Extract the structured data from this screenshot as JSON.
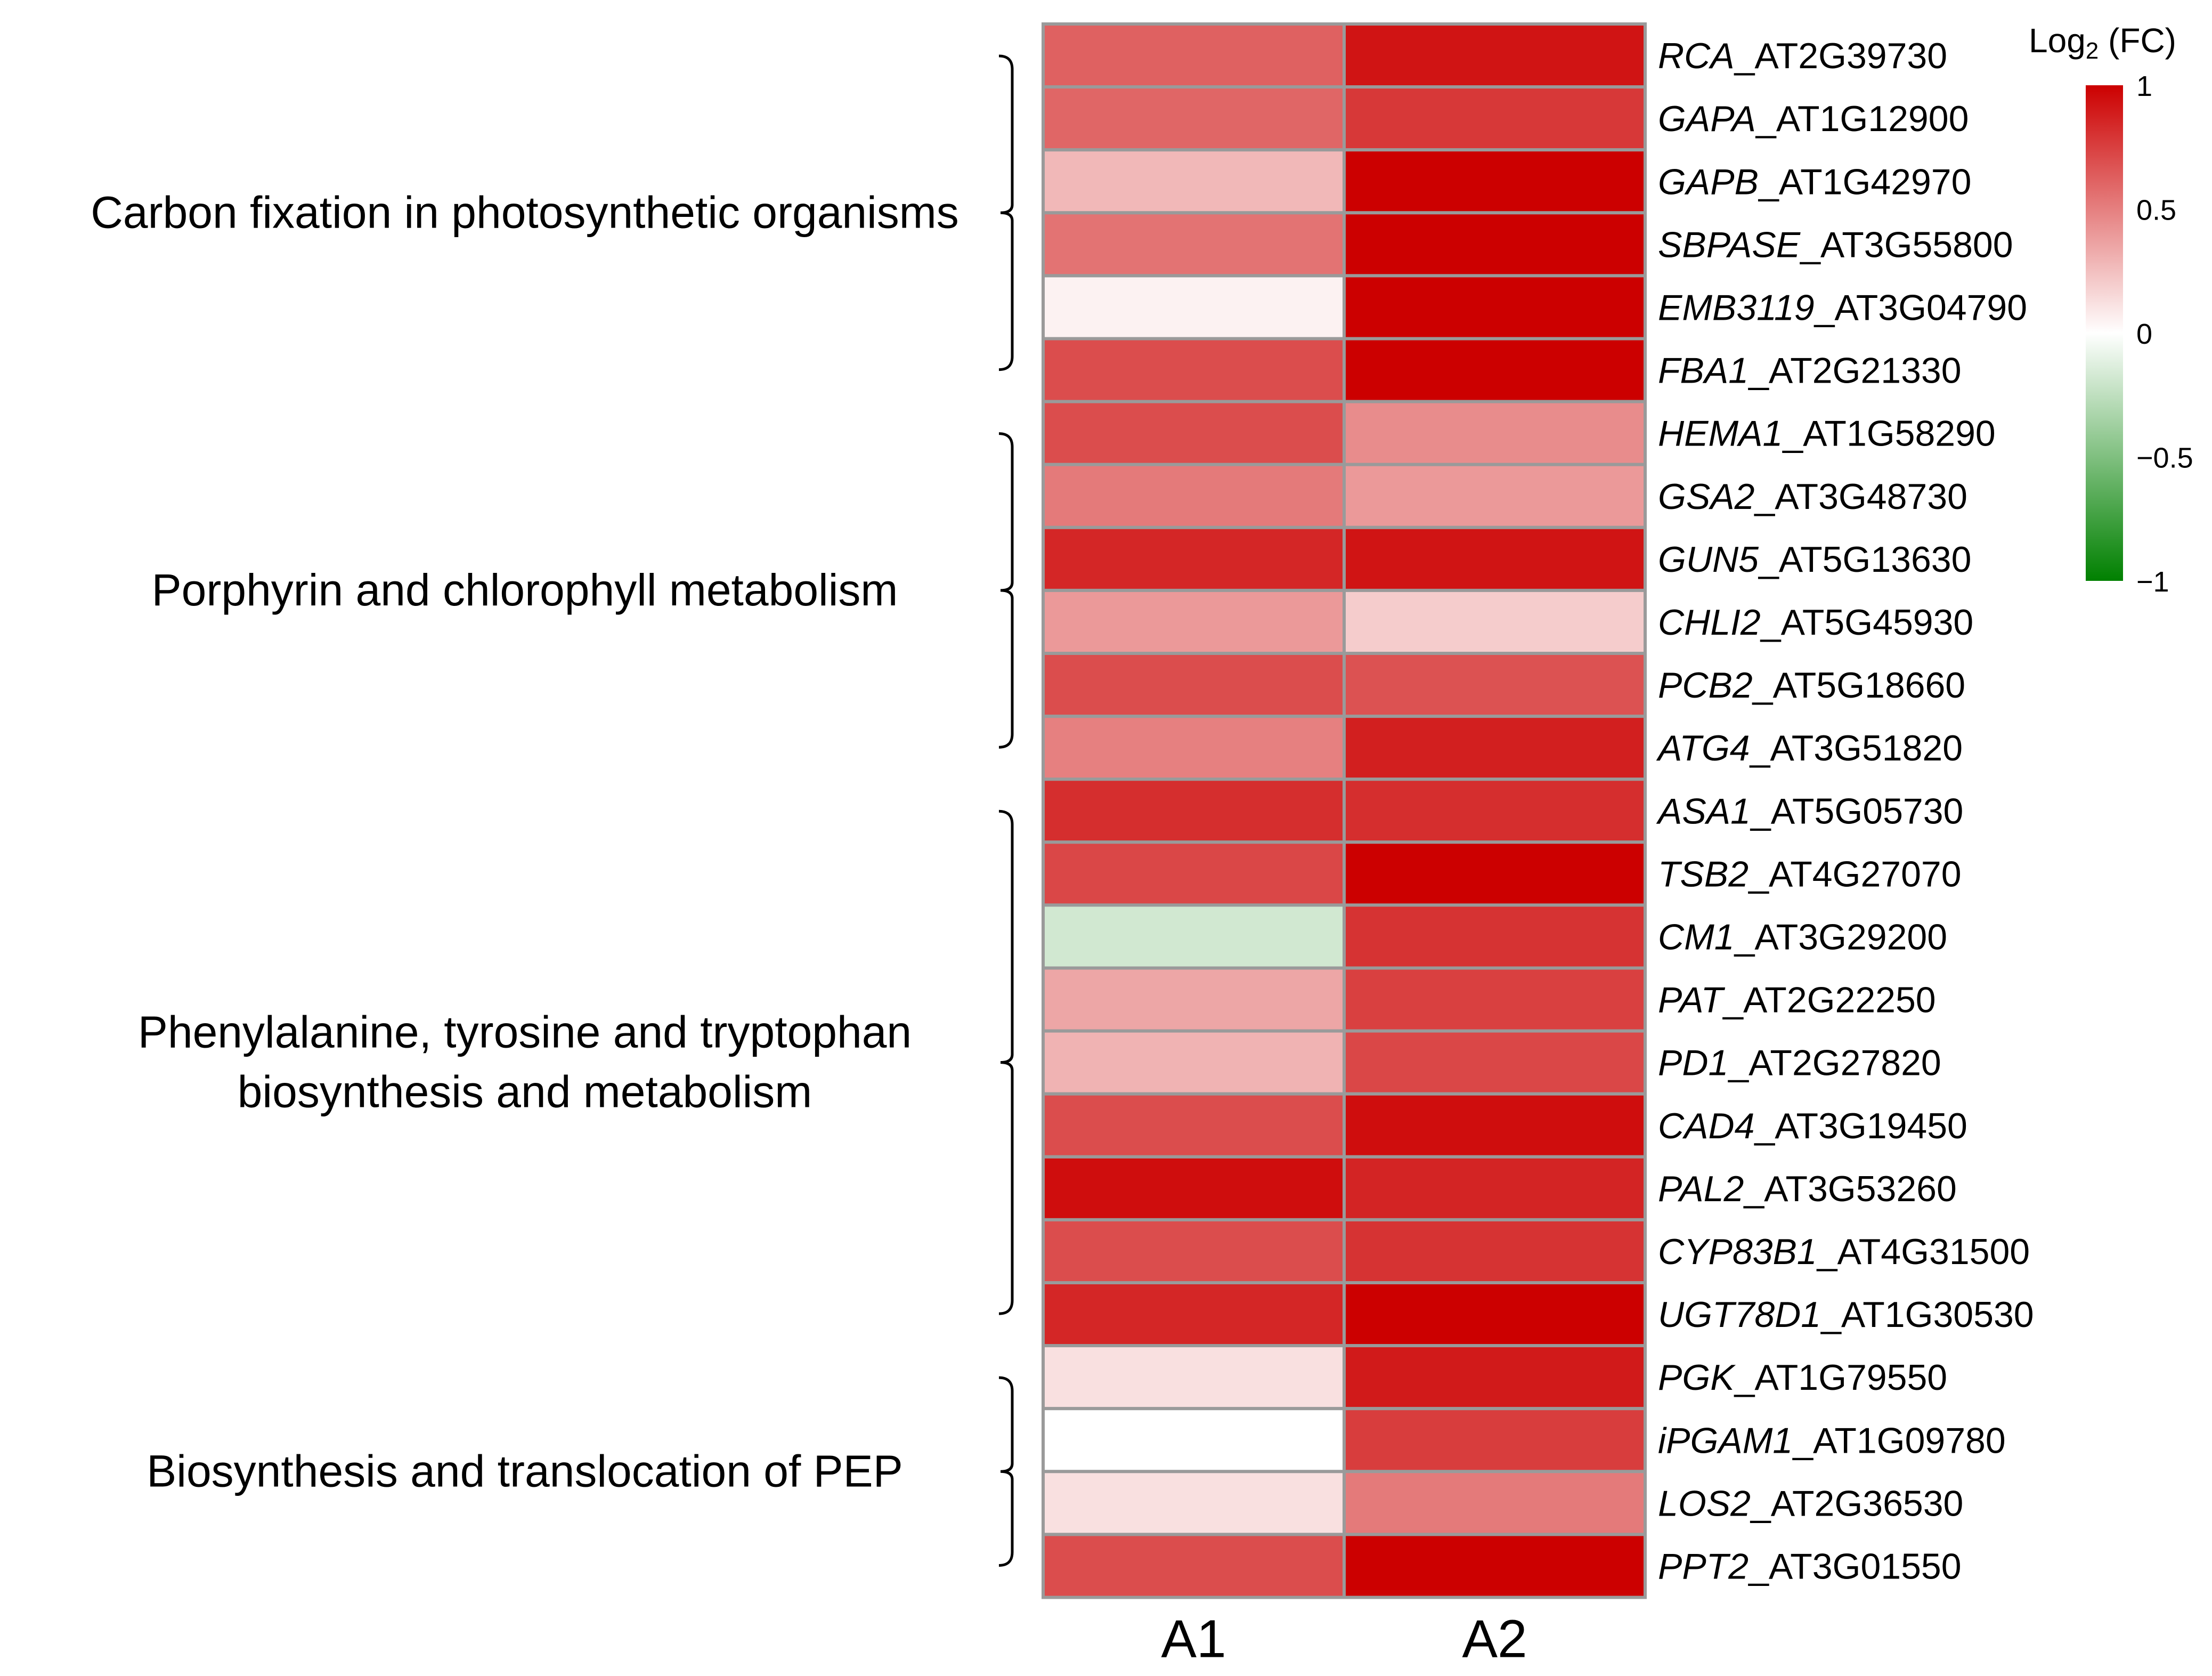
{
  "chart_data": {
    "type": "heatmap",
    "columns": [
      "A1",
      "A2"
    ],
    "legend": {
      "title_prefix": "Log",
      "title_sub": "2",
      "title_suffix": " (FC)",
      "min": -1,
      "max": 1,
      "ticks": [
        {
          "value": 1,
          "label": "1"
        },
        {
          "value": 0.5,
          "label": "0.5"
        },
        {
          "value": 0,
          "label": "0"
        },
        {
          "value": -0.5,
          "label": "−0.5"
        },
        {
          "value": -1,
          "label": "−1"
        }
      ],
      "colors": {
        "low": "#008000",
        "mid": "#ffffff",
        "high": "#cc0000"
      }
    },
    "groups": [
      {
        "label_lines": [
          "Carbon fixation in photosynthetic organisms"
        ],
        "first_row": 0,
        "last_row": 5
      },
      {
        "label_lines": [
          "Porphyrin and chlorophyll metabolism"
        ],
        "first_row": 6,
        "last_row": 11
      },
      {
        "label_lines": [
          "Phenylalanine, tyrosine and tryptophan",
          "biosynthesis and metabolism"
        ],
        "first_row": 12,
        "last_row": 20
      },
      {
        "label_lines": [
          "Biosynthesis and translocation of PEP"
        ],
        "first_row": 21,
        "last_row": 24
      }
    ],
    "rows": [
      {
        "gene": "RCA",
        "locus": "_AT2G39730",
        "values": [
          0.62,
          0.92
        ]
      },
      {
        "gene": "GAPA",
        "locus": "_AT1G12900",
        "values": [
          0.6,
          0.78
        ]
      },
      {
        "gene": "GAPB",
        "locus": "_AT1G42970",
        "values": [
          0.28,
          1.0
        ]
      },
      {
        "gene": "SBPASE",
        "locus": "_AT3G55800",
        "values": [
          0.55,
          1.0
        ]
      },
      {
        "gene": "EMB3119",
        "locus": "_AT3G04790",
        "values": [
          0.05,
          1.0
        ]
      },
      {
        "gene": "FBA1",
        "locus": "_AT2G21330",
        "values": [
          0.7,
          1.0
        ]
      },
      {
        "gene": "HEMA1",
        "locus": "_AT1G58290",
        "values": [
          0.7,
          0.45
        ]
      },
      {
        "gene": "GSA2",
        "locus": "_AT3G48730",
        "values": [
          0.52,
          0.4
        ]
      },
      {
        "gene": "GUN5",
        "locus": "_AT5G13630",
        "values": [
          0.85,
          0.92
        ]
      },
      {
        "gene": "CHLI2",
        "locus": "_AT5G45930",
        "values": [
          0.4,
          0.2
        ]
      },
      {
        "gene": "PCB2",
        "locus": "_AT5G18660",
        "values": [
          0.7,
          0.68
        ]
      },
      {
        "gene": "ATG4",
        "locus": "_AT3G51820",
        "values": [
          0.5,
          0.88
        ]
      },
      {
        "gene": "ASA1",
        "locus": "_AT5G05730",
        "values": [
          0.82,
          0.82
        ]
      },
      {
        "gene": "TSB2",
        "locus": "_AT4G27070",
        "values": [
          0.72,
          1.0
        ]
      },
      {
        "gene": "CM1",
        "locus": "_AT3G29200",
        "values": [
          -0.18,
          0.8
        ]
      },
      {
        "gene": "PAT",
        "locus": "_AT2G22250",
        "values": [
          0.35,
          0.75
        ]
      },
      {
        "gene": "PD1",
        "locus": "_AT2G27820",
        "values": [
          0.3,
          0.72
        ]
      },
      {
        "gene": "CAD4",
        "locus": "_AT3G19450",
        "values": [
          0.7,
          0.95
        ]
      },
      {
        "gene": "PAL2",
        "locus": "_AT3G53260",
        "values": [
          0.95,
          0.86
        ]
      },
      {
        "gene": "CYP83B1",
        "locus": "_AT4G31500",
        "values": [
          0.7,
          0.8
        ]
      },
      {
        "gene": "UGT78D1",
        "locus": "_AT1G30530",
        "values": [
          0.85,
          1.0
        ]
      },
      {
        "gene": "PGK",
        "locus": "_AT1G79550",
        "values": [
          0.12,
          0.9
        ]
      },
      {
        "gene": "iPGAM1",
        "locus": "_AT1G09780",
        "values": [
          0.0,
          0.76
        ]
      },
      {
        "gene": "LOS2",
        "locus": "_AT2G36530",
        "values": [
          0.12,
          0.52
        ]
      },
      {
        "gene": "PPT2",
        "locus": "_AT3G01550",
        "values": [
          0.7,
          1.0
        ]
      }
    ]
  }
}
